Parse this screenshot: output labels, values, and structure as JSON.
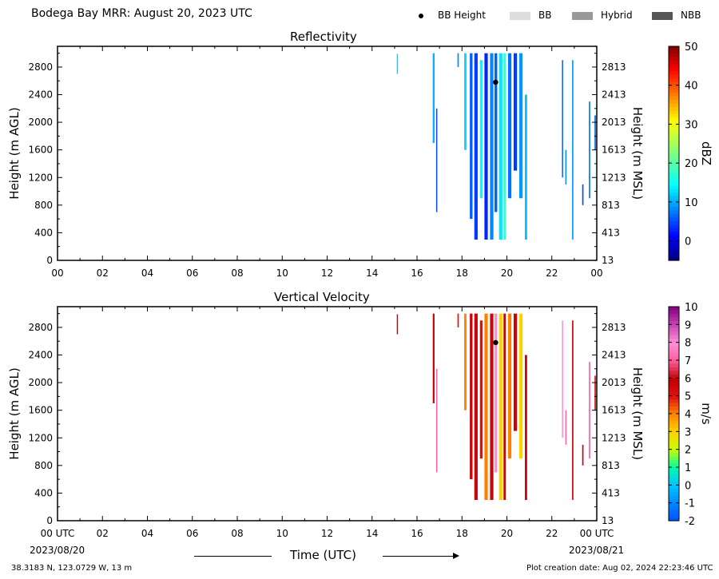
{
  "header": {
    "title": "Bodega Bay MRR:  August 20, 2023 UTC",
    "legend": [
      {
        "label": "BB Height",
        "kind": "marker",
        "color": "#000000"
      },
      {
        "label": "BB",
        "kind": "swatch",
        "color": "#dddddd"
      },
      {
        "label": "Hybrid",
        "kind": "swatch",
        "color": "#999999"
      },
      {
        "label": "NBB",
        "kind": "swatch",
        "color": "#555555"
      }
    ]
  },
  "footer": {
    "location": "38.3183 N, 123.0729 W, 13 m",
    "created": "Plot creation date: Aug 02, 2024 22:23:46 UTC",
    "xlabel": "Time (UTC)",
    "start_date": "2023/08/20",
    "end_date": "2023/08/21"
  },
  "chart_data": [
    {
      "type": "heatmap",
      "title": "Reflectivity",
      "xlabel": "",
      "ylabel": "Height (m AGL)",
      "ylabel_right": "Height (m MSL)",
      "x_ticks": [
        "00",
        "02",
        "04",
        "06",
        "08",
        "10",
        "12",
        "14",
        "16",
        "18",
        "20",
        "22",
        "00"
      ],
      "xlim": [
        0,
        24
      ],
      "y_ticks": [
        0,
        400,
        800,
        1200,
        1600,
        2000,
        2400,
        2800
      ],
      "y_ticks_right": [
        13,
        413,
        813,
        1213,
        1613,
        2013,
        2413,
        2813
      ],
      "ylim": [
        0,
        3100
      ],
      "colorbar": {
        "label": "dBZ",
        "min": -5,
        "max": 50,
        "ticks": [
          0,
          10,
          20,
          30,
          40,
          50
        ]
      },
      "bb_height": [
        {
          "x": 19.5,
          "y": 2580
        }
      ],
      "columns": [
        {
          "t": 15.1,
          "w": 0.05,
          "b": 2700,
          "top": 2990,
          "v": 12
        },
        {
          "t": 16.7,
          "w": 0.08,
          "b": 1700,
          "top": 3000,
          "v": 10
        },
        {
          "t": 16.85,
          "w": 0.05,
          "b": 700,
          "top": 2200,
          "v": 5
        },
        {
          "t": 17.8,
          "w": 0.06,
          "b": 2800,
          "top": 3000,
          "v": 8
        },
        {
          "t": 18.1,
          "w": 0.1,
          "b": 1600,
          "top": 3000,
          "v": 12
        },
        {
          "t": 18.35,
          "w": 0.12,
          "b": 600,
          "top": 3000,
          "v": 6
        },
        {
          "t": 18.55,
          "w": 0.15,
          "b": 300,
          "top": 3000,
          "v": 4
        },
        {
          "t": 18.8,
          "w": 0.12,
          "b": 900,
          "top": 2900,
          "v": 14
        },
        {
          "t": 19.0,
          "w": 0.15,
          "b": 300,
          "top": 3000,
          "v": 3
        },
        {
          "t": 19.25,
          "w": 0.15,
          "b": 300,
          "top": 3000,
          "v": 8
        },
        {
          "t": 19.45,
          "w": 0.12,
          "b": 700,
          "top": 3000,
          "v": 6
        },
        {
          "t": 19.65,
          "w": 0.15,
          "b": 300,
          "top": 3000,
          "v": 13
        },
        {
          "t": 19.85,
          "w": 0.1,
          "b": 300,
          "top": 3000,
          "v": 18
        },
        {
          "t": 20.05,
          "w": 0.15,
          "b": 900,
          "top": 3000,
          "v": 7
        },
        {
          "t": 20.3,
          "w": 0.15,
          "b": 1300,
          "top": 3000,
          "v": 4
        },
        {
          "t": 20.55,
          "w": 0.15,
          "b": 900,
          "top": 3000,
          "v": 9
        },
        {
          "t": 20.8,
          "w": 0.1,
          "b": 300,
          "top": 2400,
          "v": 11
        },
        {
          "t": 22.45,
          "w": 0.05,
          "b": 1200,
          "top": 2900,
          "v": 6
        },
        {
          "t": 22.6,
          "w": 0.05,
          "b": 1100,
          "top": 1600,
          "v": 8
        },
        {
          "t": 22.9,
          "w": 0.06,
          "b": 300,
          "top": 2900,
          "v": 9
        },
        {
          "t": 23.35,
          "w": 0.06,
          "b": 800,
          "top": 1100,
          "v": 5
        },
        {
          "t": 23.65,
          "w": 0.06,
          "b": 900,
          "top": 2300,
          "v": 7
        },
        {
          "t": 23.9,
          "w": 0.06,
          "b": 1600,
          "top": 2100,
          "v": 6
        }
      ]
    },
    {
      "type": "heatmap",
      "title": "Vertical Velocity",
      "xlabel": "Time (UTC)",
      "ylabel": "Height (m AGL)",
      "ylabel_right": "Height (m MSL)",
      "x_ticks": [
        "00 UTC",
        "02",
        "04",
        "06",
        "08",
        "10",
        "12",
        "14",
        "16",
        "18",
        "20",
        "22",
        "00 UTC"
      ],
      "xlim": [
        0,
        24
      ],
      "y_ticks": [
        0,
        400,
        800,
        1200,
        1600,
        2000,
        2400,
        2800
      ],
      "y_ticks_right": [
        13,
        413,
        813,
        1213,
        1613,
        2013,
        2413,
        2813
      ],
      "ylim": [
        0,
        3100
      ],
      "colorbar": {
        "label": "m/s",
        "min": -2,
        "max": 10,
        "ticks": [
          -2,
          -1,
          0,
          1,
          2,
          3,
          4,
          5,
          6,
          7,
          8,
          9,
          10
        ]
      },
      "bb_height": [
        {
          "x": 19.5,
          "y": 2580
        }
      ],
      "columns": [
        {
          "t": 15.1,
          "w": 0.05,
          "b": 2700,
          "top": 2990,
          "v": 6
        },
        {
          "t": 16.7,
          "w": 0.08,
          "b": 1700,
          "top": 3000,
          "v": 6
        },
        {
          "t": 16.85,
          "w": 0.05,
          "b": 700,
          "top": 2200,
          "v": 7
        },
        {
          "t": 17.8,
          "w": 0.06,
          "b": 2800,
          "top": 3000,
          "v": 5
        },
        {
          "t": 18.1,
          "w": 0.1,
          "b": 1600,
          "top": 3000,
          "v": 4
        },
        {
          "t": 18.35,
          "w": 0.12,
          "b": 600,
          "top": 3000,
          "v": 6
        },
        {
          "t": 18.55,
          "w": 0.15,
          "b": 300,
          "top": 3000,
          "v": 6
        },
        {
          "t": 18.8,
          "w": 0.12,
          "b": 900,
          "top": 2900,
          "v": 5
        },
        {
          "t": 19.0,
          "w": 0.15,
          "b": 300,
          "top": 3000,
          "v": 4
        },
        {
          "t": 19.25,
          "w": 0.15,
          "b": 300,
          "top": 3000,
          "v": 6
        },
        {
          "t": 19.45,
          "w": 0.12,
          "b": 700,
          "top": 3000,
          "v": 8
        },
        {
          "t": 19.65,
          "w": 0.15,
          "b": 300,
          "top": 3000,
          "v": 3
        },
        {
          "t": 19.85,
          "w": 0.1,
          "b": 300,
          "top": 3000,
          "v": 6
        },
        {
          "t": 20.05,
          "w": 0.15,
          "b": 900,
          "top": 3000,
          "v": 4
        },
        {
          "t": 20.3,
          "w": 0.15,
          "b": 1300,
          "top": 3000,
          "v": 6
        },
        {
          "t": 20.55,
          "w": 0.15,
          "b": 900,
          "top": 3000,
          "v": 3
        },
        {
          "t": 20.8,
          "w": 0.1,
          "b": 300,
          "top": 2400,
          "v": 6
        },
        {
          "t": 22.45,
          "w": 0.05,
          "b": 1200,
          "top": 2900,
          "v": 8
        },
        {
          "t": 22.6,
          "w": 0.05,
          "b": 1100,
          "top": 1600,
          "v": 7
        },
        {
          "t": 22.9,
          "w": 0.06,
          "b": 300,
          "top": 2900,
          "v": 6
        },
        {
          "t": 23.35,
          "w": 0.06,
          "b": 800,
          "top": 1100,
          "v": 6
        },
        {
          "t": 23.65,
          "w": 0.06,
          "b": 900,
          "top": 2300,
          "v": 7
        },
        {
          "t": 23.9,
          "w": 0.06,
          "b": 1600,
          "top": 2100,
          "v": 5
        }
      ]
    }
  ]
}
